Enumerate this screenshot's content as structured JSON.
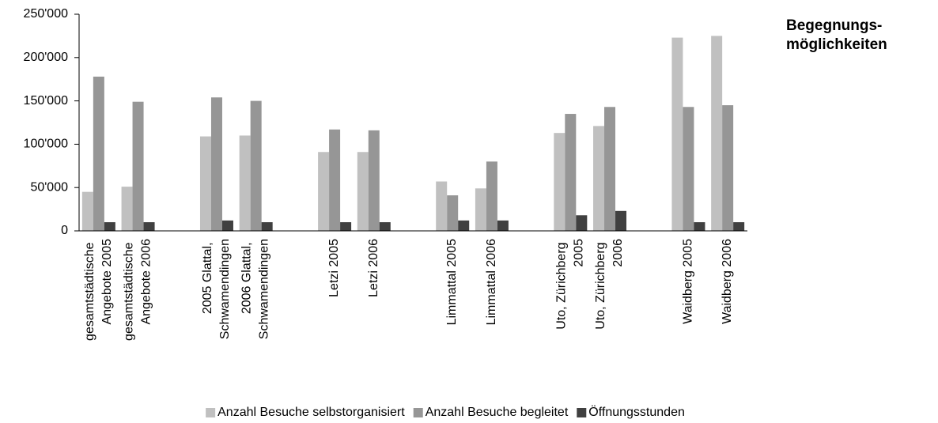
{
  "chart_data": {
    "type": "bar",
    "title": [
      "Begegnungs-",
      "möglichkeiten"
    ],
    "categories": [
      "gesamtstädtische Angebote 2005",
      "gesamtstädtische Angebote 2006",
      null,
      "2005 Glattal, Schwamendingen",
      "2006 Glattal, Schwamendingen",
      null,
      "Letzi 2005",
      "Letzi 2006",
      null,
      "Limmattal 2005",
      "Limmattal 2006",
      null,
      "Uto, Zürichberg 2005",
      "Uto, Zürichberg 2006",
      null,
      "Waidberg 2005",
      "Waidberg 2006"
    ],
    "series": [
      {
        "name": "Anzahl Besuche selbstorganisiert",
        "color": "#c0c0c0",
        "values": [
          45000,
          51000,
          null,
          109000,
          110000,
          null,
          91000,
          91000,
          null,
          57000,
          49000,
          null,
          113000,
          121000,
          null,
          223000,
          225000
        ]
      },
      {
        "name": "Anzahl Besuche begleitet",
        "color": "#969696",
        "values": [
          178000,
          149000,
          null,
          154000,
          150000,
          null,
          117000,
          116000,
          null,
          41000,
          80000,
          null,
          135000,
          143000,
          null,
          143000,
          145000
        ]
      },
      {
        "name": "Öffnungsstunden",
        "color": "#404040",
        "values": [
          10000,
          10000,
          null,
          12000,
          10000,
          null,
          10000,
          10000,
          null,
          12000,
          12000,
          null,
          18000,
          23000,
          null,
          10000,
          10000
        ]
      }
    ],
    "ylim": [
      0,
      250000
    ],
    "yticks": [
      0,
      {
        "value": 50000,
        "label": "50'000"
      },
      {
        "value": 100000,
        "label": "100'000"
      },
      {
        "value": 150000,
        "label": "150'000"
      },
      {
        "value": 200000,
        "label": "200'000"
      },
      {
        "value": 250000,
        "label": "250'000"
      }
    ],
    "legend": "bottom"
  }
}
